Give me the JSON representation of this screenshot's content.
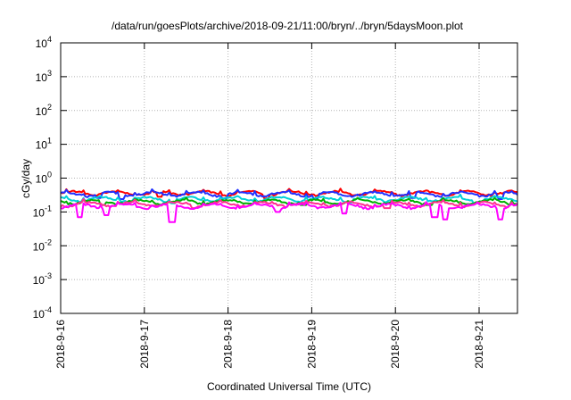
{
  "chart_data": {
    "type": "line",
    "title": "/data/run/goesPlots/archive/2018-09-21/11:00/bryn/../bryn/5daysMoon.plot",
    "xlabel": "Coordinated Universal Time (UTC)",
    "ylabel": "cGy/day",
    "y_scale": "log",
    "ylim": [
      0.0001,
      10000
    ],
    "y_ticks": [
      {
        "base": "10",
        "exp": "-4",
        "value": 0.0001
      },
      {
        "base": "10",
        "exp": "-3",
        "value": 0.001
      },
      {
        "base": "10",
        "exp": "-2",
        "value": 0.01
      },
      {
        "base": "10",
        "exp": "-1",
        "value": 0.1
      },
      {
        "base": "10",
        "exp": "0",
        "value": 1
      },
      {
        "base": "10",
        "exp": "1",
        "value": 10
      },
      {
        "base": "10",
        "exp": "2",
        "value": 100
      },
      {
        "base": "10",
        "exp": "3",
        "value": 1000
      },
      {
        "base": "10",
        "exp": "4",
        "value": 10000
      }
    ],
    "xlim": [
      "2018-09-16 00:00",
      "2018-09-21 11:00"
    ],
    "x_ticks": [
      "2018-9-16",
      "2018-9-17",
      "2018-9-18",
      "2018-9-19",
      "2018-9-20",
      "2018-9-21"
    ],
    "grid": true,
    "series": [
      {
        "color": "#ff0000",
        "level": 0.36,
        "dips": [
          [
            1.18,
            0.28
          ],
          [
            2.45,
            0.25
          ]
        ]
      },
      {
        "color": "#2030ff",
        "level": 0.34,
        "dips": [
          [
            0.45,
            0.26
          ],
          [
            0.72,
            0.24
          ],
          [
            1.95,
            0.25
          ],
          [
            3.05,
            0.25
          ],
          [
            4.2,
            0.26
          ],
          [
            5.25,
            0.24
          ]
        ]
      },
      {
        "color": "#00d0d8",
        "level": 0.24,
        "dips": [
          [
            0.82,
            0.19
          ],
          [
            1.35,
            0.18
          ],
          [
            3.45,
            0.19
          ],
          [
            4.95,
            0.18
          ]
        ]
      },
      {
        "color": "#00b000",
        "level": 0.2,
        "dips": [
          [
            0.5,
            0.16
          ],
          [
            2.9,
            0.16
          ],
          [
            4.4,
            0.16
          ]
        ]
      },
      {
        "color": "#ff3090",
        "level": 0.17,
        "dips": [
          [
            1.6,
            0.13
          ],
          [
            3.9,
            0.13
          ]
        ]
      },
      {
        "color": "#ff00ff",
        "level": 0.15,
        "dips": [
          [
            0.23,
            0.07
          ],
          [
            0.55,
            0.08
          ],
          [
            1.33,
            0.05
          ],
          [
            2.6,
            0.1
          ],
          [
            3.38,
            0.09
          ],
          [
            4.47,
            0.07
          ],
          [
            4.6,
            0.06
          ],
          [
            5.25,
            0.06
          ]
        ]
      }
    ]
  }
}
